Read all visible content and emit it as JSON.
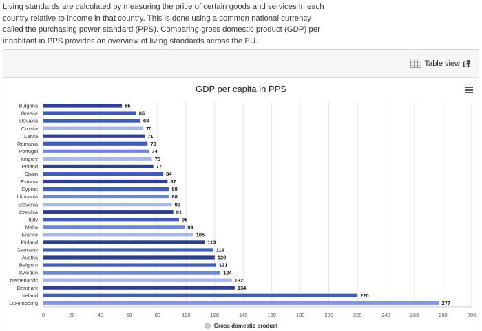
{
  "intro_text": "Living standards are calculated by measuring the price of certain goods and services in each country relative to income in that country. This is done using a common national currency called the purchasing power standard (PPS). Comparing gross domestic product (GDP) per inhabitant in PPS provides an overview of living standards across the EU.",
  "toolbar": {
    "table_view_label": "Table view"
  },
  "chart_data": {
    "type": "bar",
    "orientation": "horizontal",
    "title": "GDP per capita in PPS",
    "categories": [
      "Bulgaria",
      "Greece",
      "Slovakia",
      "Croatia",
      "Latvia",
      "Romania",
      "Portugal",
      "Hungary",
      "Poland",
      "Spain",
      "Estonia",
      "Cyprus",
      "Lithuania",
      "Slovenia",
      "Czechia",
      "Italy",
      "Malta",
      "France",
      "Finland",
      "Germany",
      "Austria",
      "Belgium",
      "Sweden",
      "Netherlands",
      "Denmark",
      "Ireland",
      "Luxembourg"
    ],
    "series": [
      {
        "name": "Gross domestic product",
        "values": [
          55,
          65,
          68,
          70,
          71,
          73,
          74,
          76,
          77,
          84,
          87,
          88,
          88,
          90,
          91,
          95,
          99,
          105,
          113,
          119,
          120,
          121,
          124,
          132,
          134,
          220,
          277
        ]
      }
    ],
    "bar_colors": [
      "#2e3f8f",
      "#3e5cb8",
      "#3e5cb8",
      "#a8b6ea",
      "#2e3f8f",
      "#3e5cb8",
      "#6d86d6",
      "#a8b6ea",
      "#2e3f8f",
      "#3e5cb8",
      "#2e3f8f",
      "#3e5cb8",
      "#6d86d6",
      "#a8b6ea",
      "#2e3f8f",
      "#3e5cb8",
      "#6d86d6",
      "#a8b6ea",
      "#2e3f8f",
      "#3e5cb8",
      "#2e3f8f",
      "#3e5cb8",
      "#6d86d6",
      "#a8b6ea",
      "#2e3f8f",
      "#3e5cb8",
      "#7f97dc"
    ],
    "xlim": [
      0,
      300
    ],
    "xticks": [
      0,
      20,
      40,
      60,
      80,
      100,
      120,
      140,
      160,
      180,
      200,
      220,
      240,
      260,
      280,
      300
    ],
    "grid": true,
    "legend": "bottom-center",
    "legend_color": "#c8c8c8"
  }
}
